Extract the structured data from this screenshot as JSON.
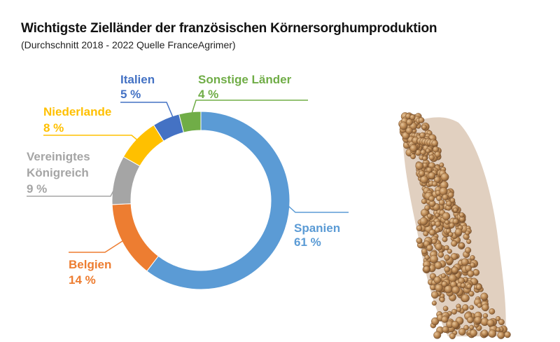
{
  "title": "Wichtigste Zielländer der französischen Körnersorghumproduktion",
  "subtitle": "(Durchschnitt 2018 - 2022 Quelle FranceAgrimer)",
  "colors": {
    "spanien": "#5b9bd5",
    "belgien": "#ed7d31",
    "vk": "#a5a5a5",
    "niederlande": "#ffc000",
    "italien": "#4472c4",
    "sonstige": "#70ad47"
  },
  "chart_data": {
    "type": "pie",
    "donut": true,
    "slices": [
      {
        "label": "Spanien",
        "value": 61,
        "value_text": "61 %",
        "color": "#5b9bd5"
      },
      {
        "label": "Belgien",
        "value": 14,
        "value_text": "14 %",
        "color": "#ed7d31"
      },
      {
        "label": "Vereinigtes Königreich",
        "label_lines": [
          "Vereinigtes",
          "Königreich"
        ],
        "value": 9,
        "value_text": "9 %",
        "color": "#a5a5a5"
      },
      {
        "label": "Niederlande",
        "value": 8,
        "value_text": "8 %",
        "color": "#ffc000"
      },
      {
        "label": "Italien",
        "value": 5,
        "value_text": "5 %",
        "color": "#4472c4"
      },
      {
        "label": "Sonstige Länder",
        "value": 4,
        "value_text": "4 %",
        "color": "#70ad47"
      }
    ]
  }
}
